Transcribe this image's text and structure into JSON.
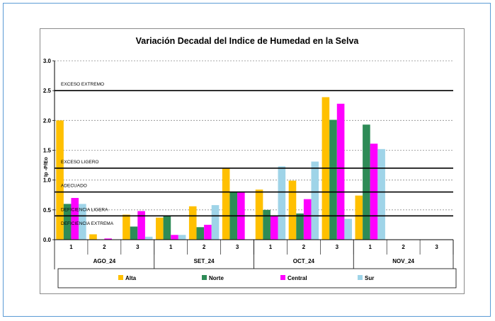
{
  "chart_data": {
    "type": "bar",
    "title": "Variación Decadal del Indice de Humedad en la Selva",
    "ylabel": "Ip -P/Eo",
    "xlabel": "",
    "ylim": [
      0,
      3.0
    ],
    "yticks": [
      "0.0",
      "0.5",
      "1.0",
      "1.5",
      "2.0",
      "2.5",
      "3.0"
    ],
    "ytick_values": [
      0,
      0.5,
      1.0,
      1.5,
      2.0,
      2.5,
      3.0
    ],
    "grid": "dashed horizontal",
    "legend_position": "bottom",
    "months": [
      {
        "label": "AGO_24",
        "decades": [
          "1",
          "2",
          "3"
        ]
      },
      {
        "label": "SET_24",
        "decades": [
          "1",
          "2",
          "3"
        ]
      },
      {
        "label": "OCT_24",
        "decades": [
          "1",
          "2",
          "3"
        ]
      },
      {
        "label": "NOV_24",
        "decades": [
          "1",
          "2",
          "3"
        ]
      }
    ],
    "series": [
      {
        "name": "Alta",
        "color": "#ffc000",
        "values": [
          2.0,
          0.09,
          0.42,
          0.37,
          0.56,
          1.19,
          0.84,
          0.99,
          2.39,
          0.74,
          null,
          null
        ]
      },
      {
        "name": "Norte",
        "color": "#2e8b57",
        "values": [
          0.6,
          0.0,
          0.22,
          0.4,
          0.21,
          0.8,
          0.5,
          0.44,
          2.01,
          1.93,
          null,
          null
        ]
      },
      {
        "name": "Central",
        "color": "#ff00ff",
        "values": [
          0.7,
          0.02,
          0.48,
          0.08,
          0.25,
          0.8,
          0.4,
          0.68,
          2.28,
          1.61,
          null,
          null
        ]
      },
      {
        "name": "Sur",
        "color": "#9fd4e8",
        "values": [
          0.6,
          0.0,
          0.05,
          0.08,
          0.58,
          null,
          1.23,
          1.31,
          0.35,
          1.52,
          null,
          null
        ]
      }
    ],
    "thresholds": [
      {
        "label": "EXCESO  EXTREMO",
        "value": 2.5
      },
      {
        "label": "EXCESO  LIGERO",
        "value": 1.2
      },
      {
        "label": "ADECUADO",
        "value": 0.8
      },
      {
        "label": "DEFICIENCIA  LIGERA",
        "value": 0.4
      },
      {
        "label": "DEFICIENCIA  EXTREMA",
        "value": 0
      }
    ]
  }
}
